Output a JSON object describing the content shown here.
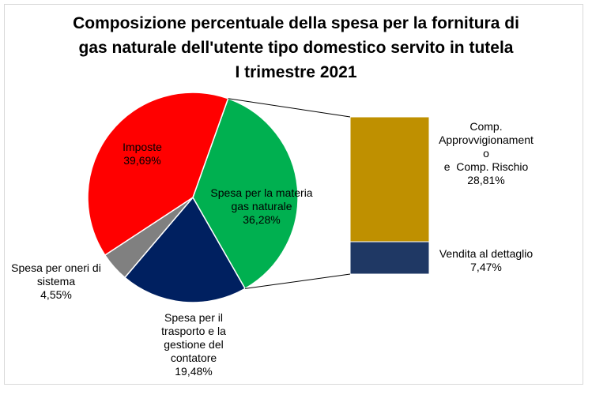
{
  "chart_data": {
    "type": "pie",
    "title_lines": [
      "Composizione percentuale della spesa per la fornitura di",
      "gas naturale dell'utente tipo domestico servito in tutela",
      "I trimestre 2021"
    ],
    "pie": {
      "slices": [
        {
          "label_lines": [
            "Spesa per la materia",
            "gas naturale",
            "36,28%"
          ],
          "value": 36.28,
          "color": "#00b050"
        },
        {
          "label_lines": [
            "Spesa per il",
            "trasporto e la",
            "gestione del",
            "contatore",
            "19,48%"
          ],
          "value": 19.48,
          "color": "#002060"
        },
        {
          "label_lines": [
            "Spesa per oneri di",
            "sistema",
            "4,55%"
          ],
          "value": 4.55,
          "color": "#808080"
        },
        {
          "label_lines": [
            "Imposte",
            "39,69%"
          ],
          "value": 39.69,
          "color": "#ff0000"
        }
      ]
    },
    "breakdown": {
      "segments": [
        {
          "label_lines": [
            "Comp.",
            "Approvvigionament",
            "o",
            "e  Comp. Rischio",
            "28,81%"
          ],
          "value": 28.81,
          "color": "#bf9000"
        },
        {
          "label_lines": [
            "Vendita al dettaglio",
            "7,47%"
          ],
          "value": 7.47,
          "color": "#1f3864"
        }
      ]
    }
  }
}
